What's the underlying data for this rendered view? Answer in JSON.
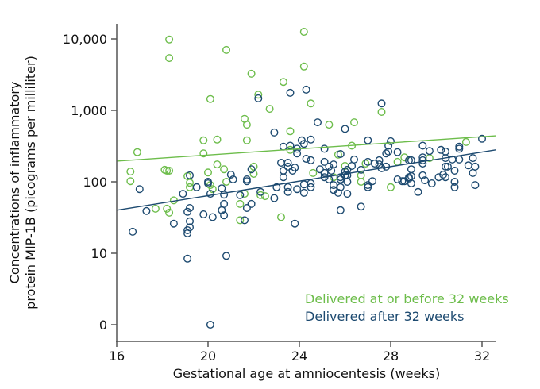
{
  "chart_data": {
    "type": "scatter",
    "xlabel": "Gestational age at amniocentesis (weeks)",
    "ylabel_lines": [
      "Concentrations of inflammatory",
      "protein MIP-1B (picograms per milliliter)"
    ],
    "xlim": [
      16,
      32.6
    ],
    "ylim": [
      0,
      15000
    ],
    "yscale": "log",
    "x_ticks": [
      "16",
      "20",
      "24",
      "28",
      "32"
    ],
    "x_tick_values": [
      16,
      20,
      24,
      28,
      32
    ],
    "y_ticks": [
      "0",
      "10",
      "100",
      "1,000",
      "10,000"
    ],
    "y_tick_values": [
      0,
      10,
      100,
      1000,
      10000
    ],
    "grid": false,
    "legend_placement": "bottom-right",
    "series": [
      {
        "name": "Delivered at or before 32 weeks",
        "color": "#6dbd4b",
        "trend": [
          [
            16,
            195
          ],
          [
            32.6,
            440
          ]
        ],
        "points": [
          [
            18.3,
            9800
          ],
          [
            18.3,
            5400
          ],
          [
            20.8,
            7000
          ],
          [
            21.9,
            3250
          ],
          [
            20.1,
            1440
          ],
          [
            22.2,
            1660
          ],
          [
            22.7,
            1050
          ],
          [
            21.6,
            760
          ],
          [
            21.7,
            630
          ],
          [
            23.6,
            510
          ],
          [
            24.2,
            12600
          ],
          [
            24.2,
            4100
          ],
          [
            23.3,
            2500
          ],
          [
            24.5,
            1250
          ],
          [
            19.8,
            380
          ],
          [
            20.4,
            390
          ],
          [
            21.7,
            380
          ],
          [
            16.9,
            260
          ],
          [
            19.8,
            250
          ],
          [
            23.6,
            280
          ],
          [
            20.4,
            175
          ],
          [
            20.7,
            150
          ],
          [
            16.6,
            139
          ],
          [
            18.1,
            147
          ],
          [
            18.2,
            143
          ],
          [
            18.3,
            143
          ],
          [
            19.1,
            120
          ],
          [
            20.0,
            135
          ],
          [
            22.0,
            163
          ],
          [
            22.0,
            129
          ],
          [
            16.6,
            102
          ],
          [
            19.2,
            97
          ],
          [
            19.2,
            84
          ],
          [
            20.1,
            90
          ],
          [
            20.2,
            79
          ],
          [
            20.8,
            100
          ],
          [
            21.6,
            68
          ],
          [
            22.3,
            65
          ],
          [
            22.5,
            63
          ],
          [
            21.4,
            49
          ],
          [
            21.4,
            29
          ],
          [
            23.2,
            32
          ],
          [
            18.5,
            55
          ],
          [
            17.7,
            42
          ],
          [
            18.2,
            42
          ],
          [
            18.3,
            37
          ],
          [
            25.3,
            630
          ],
          [
            26.4,
            680
          ],
          [
            27.6,
            950
          ],
          [
            26.3,
            320
          ],
          [
            25.7,
            240
          ],
          [
            24.6,
            133
          ],
          [
            26.0,
            167
          ],
          [
            26.9,
            180
          ],
          [
            28.3,
            190
          ],
          [
            28.6,
            220
          ],
          [
            29.7,
            215
          ],
          [
            26.7,
            123
          ],
          [
            26.7,
            100
          ],
          [
            28.0,
            84
          ],
          [
            31.3,
            360
          ],
          [
            25.5,
            116
          ]
        ]
      },
      {
        "name": "Delivered after 32 weeks",
        "color": "#1d4a70",
        "trend": [
          [
            16,
            40
          ],
          [
            32.6,
            280
          ]
        ],
        "points": [
          [
            23.6,
            1760
          ],
          [
            24.3,
            1950
          ],
          [
            22.2,
            1470
          ],
          [
            22.9,
            490
          ],
          [
            23.3,
            310
          ],
          [
            23.6,
            320
          ],
          [
            23.9,
            290
          ],
          [
            23.9,
            250
          ],
          [
            24.1,
            380
          ],
          [
            24.2,
            340
          ],
          [
            24.3,
            210
          ],
          [
            23.2,
            185
          ],
          [
            23.5,
            185
          ],
          [
            23.3,
            143
          ],
          [
            23.5,
            163
          ],
          [
            23.8,
            158
          ],
          [
            23.7,
            143
          ],
          [
            23.3,
            116
          ],
          [
            21.9,
            150
          ],
          [
            21.0,
            126
          ],
          [
            21.1,
            108
          ],
          [
            19.2,
            123
          ],
          [
            21.7,
            108
          ],
          [
            20.0,
            100
          ],
          [
            20.0,
            95
          ],
          [
            19.5,
            84
          ],
          [
            21.7,
            102
          ],
          [
            20.6,
            81
          ],
          [
            20.7,
            66
          ],
          [
            20.1,
            68
          ],
          [
            18.9,
            68
          ],
          [
            17.0,
            79
          ],
          [
            21.4,
            65
          ],
          [
            22.3,
            72
          ],
          [
            22.9,
            59
          ],
          [
            23.0,
            84
          ],
          [
            23.5,
            84
          ],
          [
            23.5,
            72
          ],
          [
            23.9,
            79
          ],
          [
            24.2,
            70
          ],
          [
            24.2,
            92
          ],
          [
            17.3,
            39
          ],
          [
            19.1,
            38
          ],
          [
            19.2,
            43
          ],
          [
            20.7,
            49
          ],
          [
            20.6,
            40
          ],
          [
            20.7,
            34
          ],
          [
            19.8,
            35
          ],
          [
            20.2,
            32
          ],
          [
            21.9,
            49
          ],
          [
            21.7,
            43
          ],
          [
            21.6,
            29
          ],
          [
            18.5,
            26
          ],
          [
            19.2,
            28
          ],
          [
            19.2,
            23
          ],
          [
            19.1,
            21
          ],
          [
            19.1,
            19
          ],
          [
            16.7,
            20
          ],
          [
            23.8,
            26
          ],
          [
            19.1,
            8.4
          ],
          [
            20.8,
            9.2
          ],
          [
            20.1,
            0
          ],
          [
            27.6,
            1250
          ],
          [
            24.8,
            680
          ],
          [
            26.0,
            550
          ],
          [
            24.5,
            390
          ],
          [
            27.0,
            380
          ],
          [
            28.0,
            370
          ],
          [
            25.1,
            290
          ],
          [
            27.9,
            320
          ],
          [
            27.8,
            250
          ],
          [
            27.9,
            265
          ],
          [
            25.8,
            245
          ],
          [
            28.3,
            260
          ],
          [
            29.4,
            320
          ],
          [
            29.7,
            270
          ],
          [
            30.2,
            280
          ],
          [
            30.4,
            265
          ],
          [
            31.0,
            310
          ],
          [
            31.0,
            290
          ],
          [
            32.0,
            400
          ],
          [
            31.6,
            215
          ],
          [
            24.5,
            200
          ],
          [
            26.4,
            205
          ],
          [
            27.0,
            190
          ],
          [
            27.3,
            180
          ],
          [
            27.5,
            200
          ],
          [
            27.5,
            175
          ],
          [
            27.8,
            163
          ],
          [
            27.6,
            155
          ],
          [
            28.8,
            200
          ],
          [
            28.9,
            200
          ],
          [
            29.4,
            220
          ],
          [
            29.4,
            200
          ],
          [
            29.4,
            180
          ],
          [
            30.4,
            215
          ],
          [
            30.7,
            205
          ],
          [
            31.0,
            205
          ],
          [
            30.4,
            163
          ],
          [
            30.5,
            163
          ],
          [
            31.4,
            170
          ],
          [
            31.7,
            163
          ],
          [
            28.9,
            150
          ],
          [
            30.8,
            143
          ],
          [
            31.6,
            133
          ],
          [
            24.9,
            150
          ],
          [
            25.1,
            190
          ],
          [
            25.3,
            163
          ],
          [
            25.1,
            133
          ],
          [
            25.5,
            175
          ],
          [
            25.4,
            143
          ],
          [
            26.3,
            167
          ],
          [
            26.1,
            147
          ],
          [
            26.0,
            139
          ],
          [
            26.0,
            123
          ],
          [
            25.8,
            116
          ],
          [
            26.1,
            123
          ],
          [
            25.8,
            108
          ],
          [
            26.7,
            147
          ],
          [
            25.3,
            108
          ],
          [
            25.1,
            116
          ],
          [
            24.5,
            95
          ],
          [
            24.5,
            84
          ],
          [
            25.5,
            90
          ],
          [
            25.8,
            84
          ],
          [
            26.1,
            100
          ],
          [
            25.5,
            77
          ],
          [
            25.7,
            70
          ],
          [
            26.1,
            68
          ],
          [
            27.2,
            102
          ],
          [
            27.0,
            90
          ],
          [
            27.0,
            84
          ],
          [
            28.3,
            108
          ],
          [
            28.5,
            102
          ],
          [
            28.6,
            102
          ],
          [
            28.8,
            111
          ],
          [
            28.8,
            116
          ],
          [
            28.9,
            120
          ],
          [
            28.9,
            95
          ],
          [
            29.4,
            123
          ],
          [
            29.5,
            105
          ],
          [
            29.8,
            95
          ],
          [
            30.1,
            116
          ],
          [
            30.3,
            126
          ],
          [
            30.4,
            116
          ],
          [
            30.8,
            100
          ],
          [
            30.8,
            84
          ],
          [
            31.7,
            90
          ],
          [
            29.2,
            72
          ],
          [
            25.8,
            40
          ],
          [
            26.7,
            45
          ]
        ]
      }
    ]
  }
}
